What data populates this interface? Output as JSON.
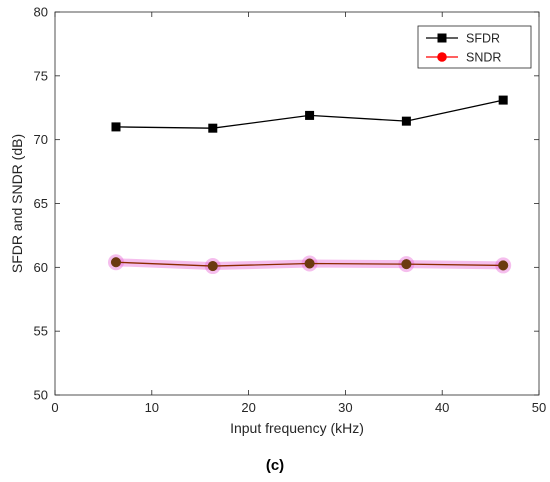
{
  "chart_data": {
    "type": "line",
    "xlabel": "Input frequency (kHz)",
    "ylabel": "SFDR and SNDR (dB)",
    "xlim": [
      0,
      50
    ],
    "ylim": [
      50,
      80
    ],
    "xticks": [
      0,
      10,
      20,
      30,
      40,
      50
    ],
    "yticks": [
      50,
      55,
      60,
      65,
      70,
      75,
      80
    ],
    "grid": false,
    "legend_position": "top-right",
    "caption": "(c)",
    "series": [
      {
        "name": "SFDR",
        "color": "#000000",
        "marker": "square",
        "x": [
          6.3,
          16.3,
          26.3,
          36.3,
          46.3
        ],
        "y": [
          71.0,
          70.9,
          71.9,
          71.45,
          73.1
        ]
      },
      {
        "name": "SNDR",
        "color": "#ff0000",
        "line_color": "#8b2a00",
        "marker": "circle",
        "highlight_color": "#e86fd8",
        "x": [
          6.3,
          16.3,
          26.3,
          36.3,
          46.3
        ],
        "y": [
          60.4,
          60.1,
          60.3,
          60.25,
          60.15
        ]
      }
    ]
  }
}
